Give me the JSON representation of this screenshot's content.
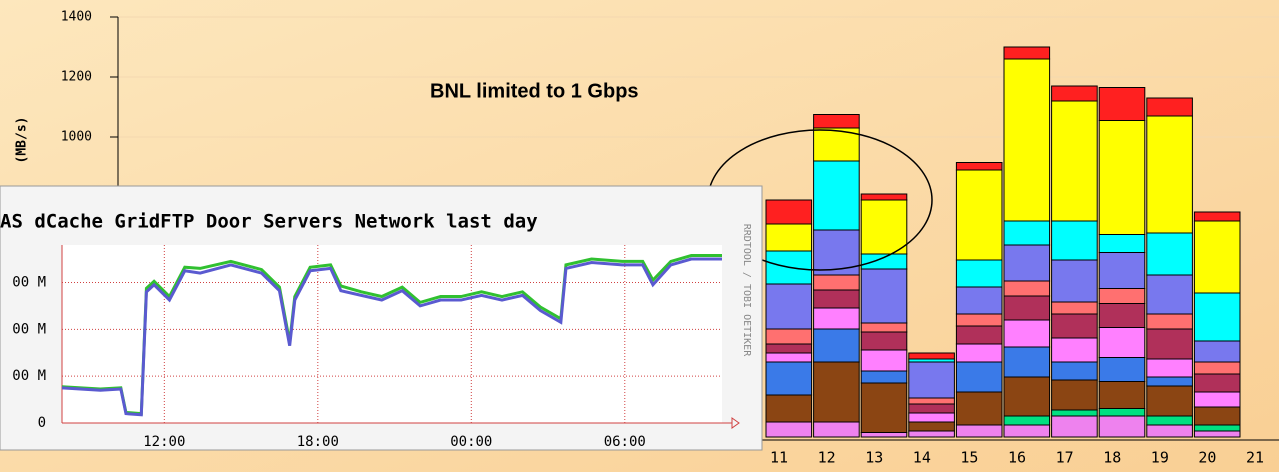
{
  "chart_data": [
    {
      "type": "bar",
      "stacked": true,
      "annotation": "BNL limited to 1 Gbps",
      "y_label": "(MB/s)",
      "categories": [
        "11",
        "12",
        "13",
        "14",
        "15",
        "16",
        "17",
        "18",
        "19",
        "20",
        "21"
      ],
      "ylim": [
        0,
        1400
      ],
      "yticks": [
        1000,
        1200,
        1400
      ],
      "grid": true,
      "series": [
        {
          "color": "#ee82ee",
          "values": [
            50,
            50,
            15,
            20,
            40,
            40,
            70,
            70,
            40,
            20,
            null
          ]
        },
        {
          "color": "#00e080",
          "values": [
            0,
            0,
            0,
            0,
            0,
            30,
            20,
            25,
            30,
            20,
            null
          ]
        },
        {
          "color": "#8b4513",
          "values": [
            90,
            200,
            165,
            30,
            110,
            130,
            100,
            90,
            100,
            60,
            null
          ]
        },
        {
          "color": "#3a7ae8",
          "values": [
            110,
            110,
            40,
            0,
            100,
            100,
            60,
            80,
            30,
            0,
            null
          ]
        },
        {
          "color": "#ff80ff",
          "values": [
            30,
            70,
            70,
            30,
            60,
            90,
            80,
            100,
            60,
            50,
            null
          ]
        },
        {
          "color": "#b0305a",
          "values": [
            30,
            60,
            60,
            30,
            60,
            80,
            80,
            80,
            100,
            60,
            null
          ]
        },
        {
          "color": "#ff7070",
          "values": [
            50,
            50,
            30,
            20,
            40,
            50,
            40,
            50,
            50,
            40,
            null
          ]
        },
        {
          "color": "#7878ee",
          "values": [
            150,
            150,
            180,
            120,
            90,
            120,
            140,
            120,
            130,
            70,
            null
          ]
        },
        {
          "color": "#00ffff",
          "values": [
            110,
            230,
            50,
            10,
            90,
            80,
            130,
            60,
            140,
            160,
            null
          ]
        },
        {
          "color": "#ffff00",
          "values": [
            90,
            110,
            180,
            0,
            300,
            540,
            400,
            380,
            390,
            240,
            null
          ]
        },
        {
          "color": "#ff2020",
          "values": [
            80,
            45,
            20,
            20,
            25,
            40,
            50,
            110,
            60,
            30,
            null
          ]
        }
      ]
    },
    {
      "type": "line",
      "title": "AS dCache GridFTP Door Servers Network last day",
      "watermark": "RRDTOOL / TOBI OETIKER",
      "xlim": [
        8,
        33.8
      ],
      "xticks": [
        {
          "value": 12,
          "label": "12:00"
        },
        {
          "value": 18,
          "label": "18:00"
        },
        {
          "value": 24,
          "label": "00:00"
        },
        {
          "value": 30,
          "label": "06:00"
        }
      ],
      "ylim": [
        0,
        760
      ],
      "yticks": [
        0,
        {
          "value": 200,
          "label": "00 M"
        },
        {
          "value": 400,
          "label": "00 M"
        },
        {
          "value": 600,
          "label": "00 M"
        }
      ],
      "grid": true,
      "x": [
        8.0,
        9.5,
        10.3,
        10.5,
        11.1,
        11.3,
        11.6,
        12.2,
        12.8,
        13.4,
        14.6,
        15.8,
        16.5,
        16.9,
        17.1,
        17.7,
        18.5,
        18.9,
        19.7,
        20.5,
        21.3,
        22.0,
        22.8,
        23.6,
        24.4,
        25.2,
        26.0,
        26.7,
        27.5,
        27.7,
        28.7,
        29.9,
        30.7,
        31.1,
        31.8,
        32.6,
        33.8
      ],
      "series": [
        {
          "color": "#30c030",
          "values": [
            155,
            145,
            150,
            45,
            40,
            575,
            605,
            540,
            665,
            660,
            690,
            655,
            580,
            345,
            540,
            665,
            675,
            585,
            560,
            540,
            580,
            515,
            540,
            540,
            560,
            540,
            560,
            495,
            445,
            675,
            700,
            690,
            690,
            610,
            690,
            715,
            715
          ]
        },
        {
          "color": "#5a5ad0",
          "values": [
            150,
            140,
            145,
            40,
            35,
            560,
            590,
            525,
            650,
            640,
            675,
            640,
            565,
            330,
            525,
            650,
            660,
            565,
            545,
            525,
            565,
            500,
            525,
            525,
            545,
            525,
            545,
            480,
            430,
            660,
            685,
            675,
            675,
            590,
            675,
            700,
            700
          ]
        }
      ]
    }
  ]
}
